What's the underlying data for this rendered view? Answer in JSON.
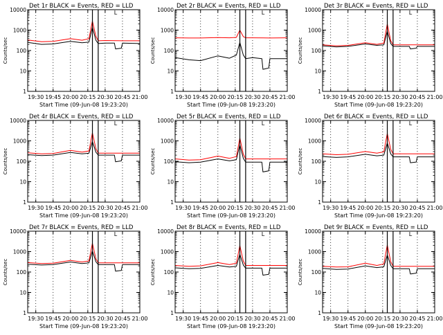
{
  "chart_data": [
    {
      "type": "line",
      "title": "Det 1r BLACK = Events, RED = LLD",
      "xlabel": "Start Time (09-Jun-08 19:23:20)",
      "ylabel": "Counts/sec",
      "yscale": "log",
      "ylim": [
        1,
        10000
      ],
      "xlim": [
        "19:23",
        "21:00"
      ],
      "x_ticks": [
        "19:30",
        "19:45",
        "20:00",
        "20:15",
        "20:30",
        "20:45",
        "21:00"
      ],
      "y_ticks": [
        "1",
        "10",
        "100",
        "1000",
        "10000"
      ],
      "grid": "dotted vertical at x ticks",
      "marker_lines": [
        "20:19",
        "20:24"
      ],
      "corner_label": "L",
      "legend": "in title",
      "series": [
        {
          "color": "#000000",
          "x": [
            "19:23",
            "19:35",
            "19:45",
            "20:00",
            "20:10",
            "20:16",
            "20:19",
            "20:22",
            "20:24",
            "20:30",
            "20:38",
            "20:39",
            "20:44",
            "20:45",
            "21:00"
          ],
          "values": [
            250,
            200,
            210,
            280,
            240,
            260,
            1400,
            320,
            220,
            230,
            230,
            120,
            130,
            230,
            220
          ]
        },
        {
          "color": "#ff0000",
          "x": [
            "19:23",
            "19:35",
            "19:45",
            "20:00",
            "20:10",
            "20:16",
            "20:19",
            "20:22",
            "20:24",
            "20:30",
            "20:45",
            "21:00"
          ],
          "values": [
            330,
            270,
            280,
            380,
            320,
            380,
            2800,
            500,
            300,
            310,
            300,
            300
          ]
        }
      ]
    },
    {
      "type": "line",
      "title": "Det 2r BLACK = Events, RED = LLD",
      "xlabel": "Start Time (09-Jun-08 19:23:20)",
      "ylabel": "Counts/sec",
      "yscale": "log",
      "ylim": [
        1,
        10000
      ],
      "xlim": [
        "19:23",
        "21:00"
      ],
      "x_ticks": [
        "19:30",
        "19:45",
        "20:00",
        "20:15",
        "20:30",
        "20:45",
        "21:00"
      ],
      "y_ticks": [
        "1",
        "10",
        "100",
        "1000",
        "10000"
      ],
      "grid": "dotted vertical at x ticks",
      "marker_lines": [
        "20:19",
        "20:24"
      ],
      "corner_label": "L",
      "legend": "in title",
      "series": [
        {
          "color": "#000000",
          "x": [
            "19:23",
            "19:35",
            "19:45",
            "20:00",
            "20:10",
            "20:16",
            "20:19",
            "20:22",
            "20:24",
            "20:30",
            "20:38",
            "20:39",
            "20:44",
            "20:45",
            "21:00"
          ],
          "values": [
            45,
            35,
            32,
            55,
            42,
            60,
            250,
            60,
            40,
            45,
            40,
            12,
            14,
            40,
            40
          ]
        },
        {
          "color": "#ff0000",
          "x": [
            "19:23",
            "19:35",
            "19:45",
            "20:00",
            "20:10",
            "20:16",
            "20:19",
            "20:22",
            "20:24",
            "20:30",
            "20:45",
            "21:00"
          ],
          "values": [
            420,
            410,
            410,
            430,
            420,
            440,
            1000,
            480,
            420,
            420,
            410,
            420
          ]
        }
      ]
    },
    {
      "type": "line",
      "title": "Det 3r BLACK = Events, RED = LLD",
      "xlabel": "Start Time (09-Jun-08 19:23:20)",
      "ylabel": "Counts/sec",
      "yscale": "log",
      "ylim": [
        1,
        10000
      ],
      "xlim": [
        "19:23",
        "21:00"
      ],
      "x_ticks": [
        "19:30",
        "19:45",
        "20:00",
        "20:15",
        "20:30",
        "20:45",
        "21:00"
      ],
      "y_ticks": [
        "1",
        "10",
        "100",
        "1000",
        "10000"
      ],
      "grid": "dotted vertical at x ticks",
      "marker_lines": [
        "20:19",
        "20:24"
      ],
      "corner_label": "L",
      "legend": "in title",
      "series": [
        {
          "color": "#000000",
          "x": [
            "19:23",
            "19:35",
            "19:45",
            "20:00",
            "20:10",
            "20:16",
            "20:19",
            "20:22",
            "20:24",
            "20:30",
            "20:38",
            "20:39",
            "20:44",
            "20:45",
            "21:00"
          ],
          "values": [
            170,
            150,
            160,
            210,
            180,
            190,
            900,
            220,
            160,
            160,
            160,
            120,
            130,
            160,
            160
          ]
        },
        {
          "color": "#ff0000",
          "x": [
            "19:23",
            "19:35",
            "19:45",
            "20:00",
            "20:10",
            "20:16",
            "20:19",
            "20:22",
            "20:24",
            "20:30",
            "20:45",
            "21:00"
          ],
          "values": [
            190,
            170,
            180,
            240,
            200,
            230,
            2000,
            300,
            190,
            190,
            190,
            190
          ]
        }
      ]
    },
    {
      "type": "line",
      "title": "Det 4r BLACK = Events, RED = LLD",
      "xlabel": "Start Time (09-Jun-08 19:23:20)",
      "ylabel": "Counts/sec",
      "yscale": "log",
      "ylim": [
        1,
        10000
      ],
      "xlim": [
        "19:23",
        "21:00"
      ],
      "x_ticks": [
        "19:30",
        "19:45",
        "20:00",
        "20:15",
        "20:30",
        "20:45",
        "21:00"
      ],
      "y_ticks": [
        "1",
        "10",
        "100",
        "1000",
        "10000"
      ],
      "grid": "dotted vertical at x ticks",
      "marker_lines": [
        "20:19",
        "20:24"
      ],
      "corner_label": "L",
      "legend": "in title",
      "series": [
        {
          "color": "#000000",
          "x": [
            "19:23",
            "19:35",
            "19:45",
            "20:00",
            "20:10",
            "20:16",
            "20:19",
            "20:22",
            "20:24",
            "20:30",
            "20:38",
            "20:39",
            "20:44",
            "20:45",
            "21:00"
          ],
          "values": [
            210,
            190,
            200,
            270,
            230,
            250,
            950,
            280,
            200,
            200,
            200,
            95,
            105,
            200,
            200
          ]
        },
        {
          "color": "#ff0000",
          "x": [
            "19:23",
            "19:35",
            "19:45",
            "20:00",
            "20:10",
            "20:16",
            "20:19",
            "20:22",
            "20:24",
            "20:30",
            "20:45",
            "21:00"
          ],
          "values": [
            260,
            230,
            240,
            340,
            280,
            320,
            2500,
            420,
            250,
            250,
            250,
            250
          ]
        }
      ]
    },
    {
      "type": "line",
      "title": "Det 5r BLACK = Events, RED = LLD",
      "xlabel": "Start Time (09-Jun-08 19:23:20)",
      "ylabel": "Counts/sec",
      "yscale": "log",
      "ylim": [
        1,
        10000
      ],
      "xlim": [
        "19:23",
        "21:00"
      ],
      "x_ticks": [
        "19:30",
        "19:45",
        "20:00",
        "20:15",
        "20:30",
        "20:45",
        "21:00"
      ],
      "y_ticks": [
        "1",
        "10",
        "100",
        "1000",
        "10000"
      ],
      "grid": "dotted vertical at x ticks",
      "marker_lines": [
        "20:19",
        "20:24"
      ],
      "corner_label": "L",
      "legend": "in title",
      "series": [
        {
          "color": "#000000",
          "x": [
            "19:23",
            "19:35",
            "19:45",
            "20:00",
            "20:10",
            "20:16",
            "20:19",
            "20:22",
            "20:24",
            "20:30",
            "20:38",
            "20:39",
            "20:44",
            "20:45",
            "21:00"
          ],
          "values": [
            95,
            85,
            90,
            130,
            105,
            120,
            650,
            140,
            90,
            90,
            90,
            30,
            34,
            90,
            90
          ]
        },
        {
          "color": "#ff0000",
          "x": [
            "19:23",
            "19:35",
            "19:45",
            "20:00",
            "20:10",
            "20:16",
            "20:19",
            "20:22",
            "20:24",
            "20:30",
            "20:45",
            "21:00"
          ],
          "values": [
            130,
            115,
            120,
            180,
            140,
            170,
            1400,
            220,
            130,
            130,
            130,
            130
          ]
        }
      ]
    },
    {
      "type": "line",
      "title": "Det 6r BLACK = Events, RED = LLD",
      "xlabel": "Start Time (09-Jun-08 19:23:20)",
      "ylabel": "Counts/sec",
      "yscale": "log",
      "ylim": [
        1,
        10000
      ],
      "xlim": [
        "19:23",
        "21:00"
      ],
      "x_ticks": [
        "19:30",
        "19:45",
        "20:00",
        "20:15",
        "20:30",
        "20:45",
        "21:00"
      ],
      "y_ticks": [
        "1",
        "10",
        "100",
        "1000",
        "10000"
      ],
      "grid": "dotted vertical at x ticks",
      "marker_lines": [
        "20:19",
        "20:24"
      ],
      "corner_label": "L",
      "legend": "in title",
      "series": [
        {
          "color": "#000000",
          "x": [
            "19:23",
            "19:35",
            "19:45",
            "20:00",
            "20:10",
            "20:16",
            "20:19",
            "20:22",
            "20:24",
            "20:30",
            "20:38",
            "20:39",
            "20:44",
            "20:45",
            "21:00"
          ],
          "values": [
            170,
            155,
            165,
            220,
            185,
            200,
            800,
            230,
            165,
            165,
            165,
            85,
            92,
            165,
            165
          ]
        },
        {
          "color": "#ff0000",
          "x": [
            "19:23",
            "19:35",
            "19:45",
            "20:00",
            "20:10",
            "20:16",
            "20:19",
            "20:22",
            "20:24",
            "20:30",
            "20:45",
            "21:00"
          ],
          "values": [
            230,
            210,
            220,
            300,
            250,
            290,
            2300,
            380,
            230,
            230,
            230,
            230
          ]
        }
      ]
    },
    {
      "type": "line",
      "title": "Det 7r BLACK = Events, RED = LLD",
      "xlabel": "Start Time (09-Jun-08 19:23:20)",
      "ylabel": "Counts/sec",
      "yscale": "log",
      "ylim": [
        1,
        10000
      ],
      "xlim": [
        "19:23",
        "21:00"
      ],
      "x_ticks": [
        "19:30",
        "19:45",
        "20:00",
        "20:15",
        "20:30",
        "20:45",
        "21:00"
      ],
      "y_ticks": [
        "1",
        "10",
        "100",
        "1000",
        "10000"
      ],
      "grid": "dotted vertical at x ticks",
      "marker_lines": [
        "20:19",
        "20:24"
      ],
      "corner_label": "L",
      "legend": "in title",
      "series": [
        {
          "color": "#000000",
          "x": [
            "19:23",
            "19:35",
            "19:45",
            "20:00",
            "20:10",
            "20:16",
            "20:19",
            "20:22",
            "20:24",
            "20:30",
            "20:38",
            "20:39",
            "20:44",
            "20:45",
            "21:00"
          ],
          "values": [
            240,
            220,
            230,
            310,
            260,
            280,
            1100,
            320,
            230,
            230,
            230,
            110,
            120,
            230,
            230
          ]
        },
        {
          "color": "#ff0000",
          "x": [
            "19:23",
            "19:35",
            "19:45",
            "20:00",
            "20:10",
            "20:16",
            "20:19",
            "20:22",
            "20:24",
            "20:30",
            "20:45",
            "21:00"
          ],
          "values": [
            290,
            260,
            270,
            370,
            310,
            350,
            2600,
            450,
            280,
            280,
            280,
            280
          ]
        }
      ]
    },
    {
      "type": "line",
      "title": "Det 8r BLACK = Events, RED = LLD",
      "xlabel": "Start Time (09-Jun-08 19:23:20)",
      "ylabel": "Counts/sec",
      "yscale": "log",
      "ylim": [
        1,
        10000
      ],
      "xlim": [
        "19:23",
        "21:00"
      ],
      "x_ticks": [
        "19:30",
        "19:45",
        "20:00",
        "20:15",
        "20:30",
        "20:45",
        "21:00"
      ],
      "y_ticks": [
        "1",
        "10",
        "100",
        "1000",
        "10000"
      ],
      "grid": "dotted vertical at x ticks",
      "marker_lines": [
        "20:19",
        "20:24"
      ],
      "corner_label": "L",
      "legend": "in title",
      "series": [
        {
          "color": "#000000",
          "x": [
            "19:23",
            "19:35",
            "19:45",
            "20:00",
            "20:10",
            "20:16",
            "20:19",
            "20:22",
            "20:24",
            "20:30",
            "20:38",
            "20:39",
            "20:44",
            "20:45",
            "21:00"
          ],
          "values": [
            160,
            145,
            150,
            210,
            175,
            190,
            750,
            220,
            155,
            155,
            155,
            70,
            78,
            155,
            155
          ]
        },
        {
          "color": "#ff0000",
          "x": [
            "19:23",
            "19:35",
            "19:45",
            "20:00",
            "20:10",
            "20:16",
            "20:19",
            "20:22",
            "20:24",
            "20:30",
            "20:45",
            "21:00"
          ],
          "values": [
            210,
            190,
            200,
            290,
            230,
            270,
            2000,
            340,
            210,
            210,
            210,
            210
          ]
        }
      ]
    },
    {
      "type": "line",
      "title": "Det 9r BLACK = Events, RED = LLD",
      "xlabel": "Start Time (09-Jun-08 19:23:20)",
      "ylabel": "Counts/sec",
      "yscale": "log",
      "ylim": [
        1,
        10000
      ],
      "xlim": [
        "19:23",
        "21:00"
      ],
      "x_ticks": [
        "19:30",
        "19:45",
        "20:00",
        "20:15",
        "20:30",
        "20:45",
        "21:00"
      ],
      "y_ticks": [
        "1",
        "10",
        "100",
        "1000",
        "10000"
      ],
      "grid": "dotted vertical at x ticks",
      "marker_lines": [
        "20:19",
        "20:24"
      ],
      "corner_label": "L",
      "legend": "in title",
      "series": [
        {
          "color": "#000000",
          "x": [
            "19:23",
            "19:35",
            "19:45",
            "20:00",
            "20:10",
            "20:16",
            "20:19",
            "20:22",
            "20:24",
            "20:30",
            "20:38",
            "20:39",
            "20:44",
            "20:45",
            "21:00"
          ],
          "values": [
            150,
            135,
            140,
            200,
            165,
            180,
            700,
            210,
            145,
            145,
            145,
            80,
            88,
            145,
            145
          ]
        },
        {
          "color": "#ff0000",
          "x": [
            "19:23",
            "19:35",
            "19:45",
            "20:00",
            "20:10",
            "20:16",
            "20:19",
            "20:22",
            "20:24",
            "20:30",
            "20:45",
            "21:00"
          ],
          "values": [
            190,
            175,
            180,
            270,
            210,
            250,
            2100,
            320,
            190,
            190,
            190,
            190
          ]
        }
      ]
    }
  ]
}
